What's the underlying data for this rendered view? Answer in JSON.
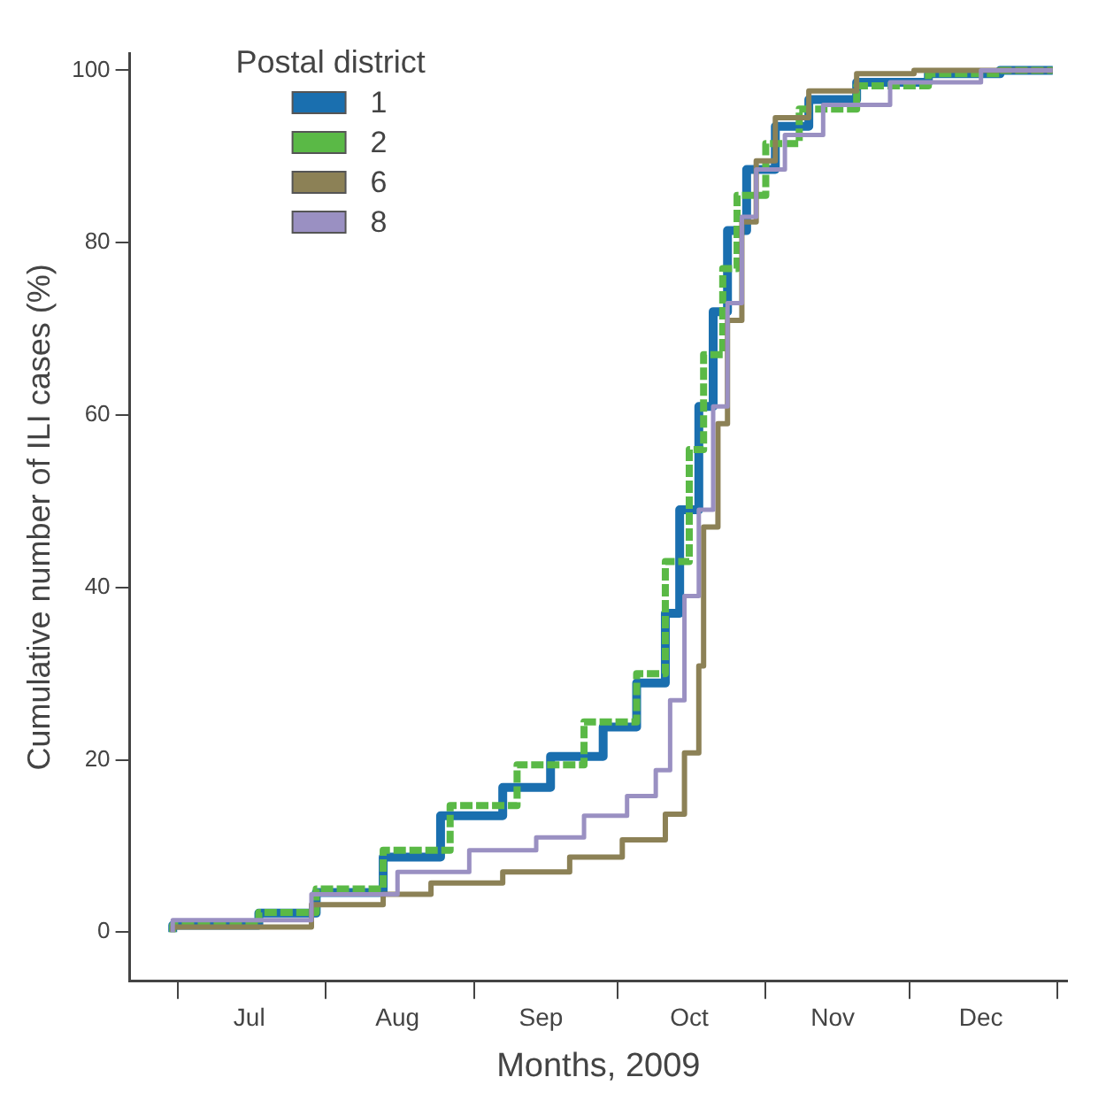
{
  "chart_data": {
    "type": "step",
    "xlabel": "Months, 2009",
    "ylabel": "Cumulative number of ILI cases (%)",
    "legend_title": "Postal district",
    "legend": "top left",
    "grid": false,
    "marker": "none",
    "xlim": [
      "2009-06-21",
      "2010-01-03"
    ],
    "ylim": [
      -5.7,
      102
    ],
    "xticks": [
      {
        "value": "2009-07-01",
        "label": null
      },
      {
        "value": "2009-07-16",
        "label": "Jul"
      },
      {
        "value": "2009-08-01",
        "label": null
      },
      {
        "value": "2009-08-16",
        "label": "Aug"
      },
      {
        "value": "2009-09-01",
        "label": null
      },
      {
        "value": "2009-09-15",
        "label": "Sep"
      },
      {
        "value": "2009-10-01",
        "label": null
      },
      {
        "value": "2009-10-16",
        "label": "Oct"
      },
      {
        "value": "2009-11-01",
        "label": null
      },
      {
        "value": "2009-11-15",
        "label": "Nov"
      },
      {
        "value": "2009-12-01",
        "label": null
      },
      {
        "value": "2009-12-16",
        "label": "Dec"
      },
      {
        "value": "2010-01-01",
        "label": null
      }
    ],
    "yticks": [
      0,
      20,
      40,
      60,
      80,
      100
    ],
    "series": [
      {
        "name": "1",
        "color": "#1a6faf",
        "line_style": "solid",
        "x": [
          "2009-06-30",
          "2009-07-18",
          "2009-07-30",
          "2009-08-13",
          "2009-08-25",
          "2009-09-07",
          "2009-09-17",
          "2009-09-28",
          "2009-10-05",
          "2009-10-11",
          "2009-10-14",
          "2009-10-18",
          "2009-10-21",
          "2009-10-24",
          "2009-10-28",
          "2009-11-03",
          "2009-11-10",
          "2009-11-20",
          "2009-12-05",
          "2009-12-20",
          "2009-12-31"
        ],
        "values": [
          0,
          0.8,
          2.2,
          4.6,
          8.7,
          13.5,
          16.8,
          20.4,
          23.8,
          28.9,
          37,
          49,
          61,
          72,
          81.4,
          88.5,
          93.5,
          96.6,
          98.6,
          99.6,
          100
        ]
      },
      {
        "name": "2",
        "color": "#5ab946",
        "line_style": "dashed",
        "x": [
          "2009-06-30",
          "2009-07-18",
          "2009-07-30",
          "2009-08-13",
          "2009-08-27",
          "2009-09-10",
          "2009-09-24",
          "2009-10-05",
          "2009-10-11",
          "2009-10-16",
          "2009-10-19",
          "2009-10-23",
          "2009-10-26",
          "2009-11-01",
          "2009-11-08",
          "2009-11-20",
          "2009-12-05",
          "2009-12-20",
          "2009-12-31"
        ],
        "values": [
          0,
          0.8,
          2.3,
          5,
          9.5,
          14.7,
          19.4,
          24.4,
          30,
          43,
          56,
          67,
          77,
          85.5,
          91.5,
          95.5,
          98.2,
          99.6,
          100
        ]
      },
      {
        "name": "6",
        "color": "#8c8156",
        "line_style": "solid",
        "x": [
          "2009-06-30",
          "2009-07-29",
          "2009-08-13",
          "2009-08-23",
          "2009-09-07",
          "2009-09-21",
          "2009-10-02",
          "2009-10-11",
          "2009-10-15",
          "2009-10-18",
          "2009-10-19",
          "2009-10-22",
          "2009-10-24",
          "2009-10-27",
          "2009-10-30",
          "2009-11-03",
          "2009-11-10",
          "2009-11-20",
          "2009-12-02",
          "2009-12-13",
          "2009-12-31"
        ],
        "values": [
          0,
          0.6,
          3.2,
          4.4,
          5.7,
          7,
          8.7,
          10.7,
          13.7,
          20.8,
          30.9,
          47,
          59,
          71,
          82.4,
          89.5,
          94.5,
          97.6,
          99.6,
          100,
          100
        ]
      },
      {
        "name": "8",
        "color": "#9a90c2",
        "line_style": "solid",
        "x": [
          "2009-06-30",
          "2009-07-29",
          "2009-08-16",
          "2009-08-31",
          "2009-09-14",
          "2009-09-24",
          "2009-10-03",
          "2009-10-09",
          "2009-10-12",
          "2009-10-15",
          "2009-10-18",
          "2009-10-21",
          "2009-10-24",
          "2009-10-27",
          "2009-10-30",
          "2009-11-05",
          "2009-11-13",
          "2009-11-27",
          "2009-12-16",
          "2009-12-31"
        ],
        "values": [
          0,
          1.4,
          4.4,
          7,
          9.5,
          11,
          13.5,
          15.8,
          18.8,
          26.9,
          39,
          49,
          61,
          73,
          83,
          88.5,
          92.5,
          96,
          98.6,
          100
        ]
      }
    ]
  }
}
